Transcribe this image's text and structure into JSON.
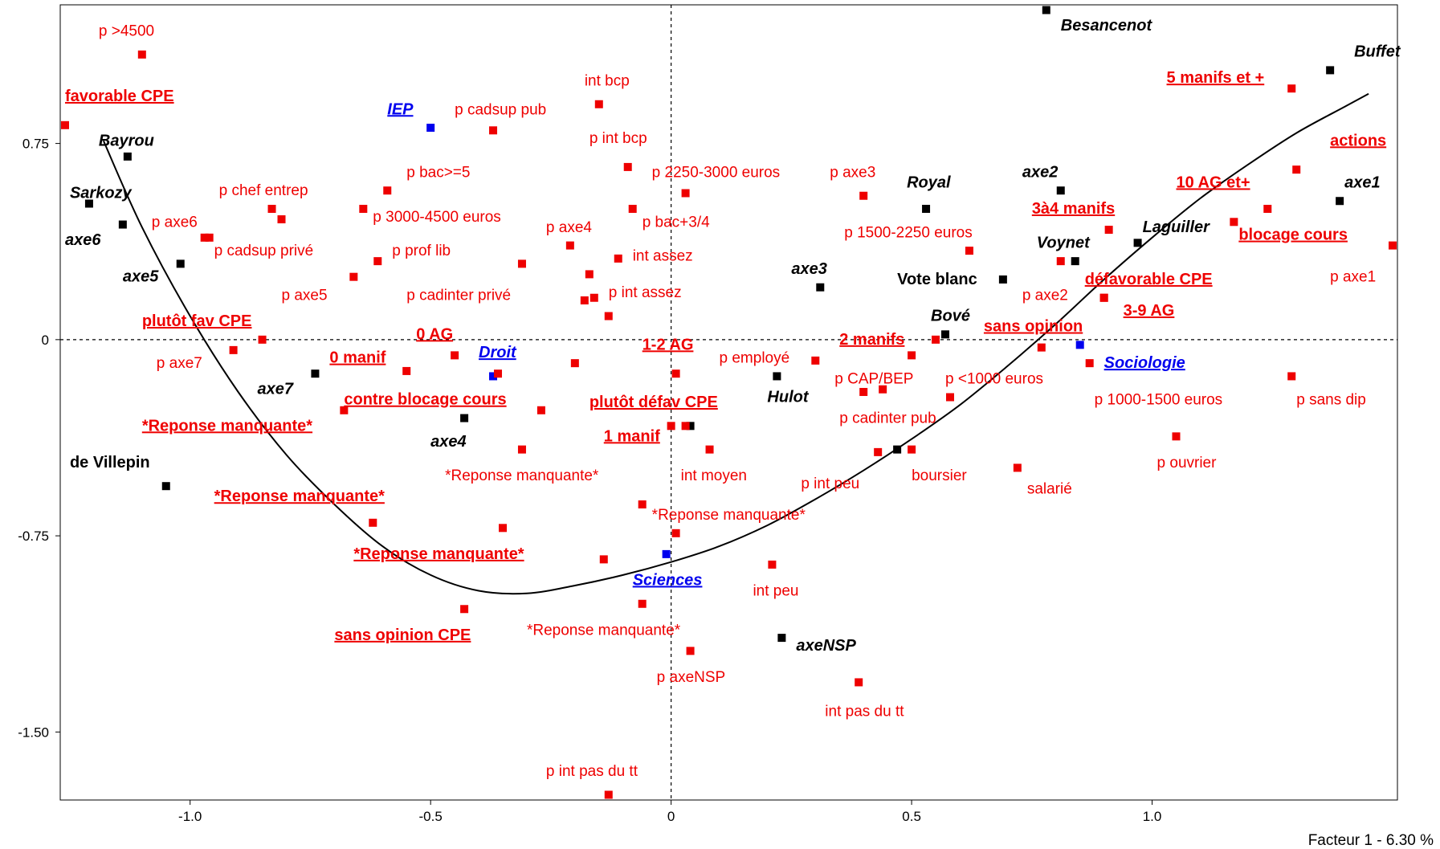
{
  "chart_data": {
    "type": "scatter",
    "subtitle": "Facteur 1  -  6.30 %",
    "xlim": [
      -1.27,
      1.51
    ],
    "ylim": [
      -1.76,
      1.28
    ],
    "grid": false,
    "zero_lines": "dashed",
    "x_ticks": [
      "-1.0",
      "-0.5",
      "0",
      "0.5",
      "1.0"
    ],
    "x_tick_values": [
      -1.0,
      -0.5,
      0,
      0.5,
      1.0
    ],
    "y_ticks": [
      "0.75",
      "0",
      "-0.75",
      "-1.50"
    ],
    "y_tick_values": [
      0.75,
      0,
      -0.75,
      -1.5
    ],
    "colors": {
      "red": "#ee0000",
      "black": "#000000",
      "blue": "#0000ee",
      "curve": "#000000"
    },
    "curve": [
      [
        -1.18,
        0.76
      ],
      [
        -1.1,
        0.43
      ],
      [
        -1.0,
        0.09
      ],
      [
        -0.9,
        -0.2
      ],
      [
        -0.8,
        -0.44
      ],
      [
        -0.7,
        -0.63
      ],
      [
        -0.6,
        -0.79
      ],
      [
        -0.5,
        -0.9
      ],
      [
        -0.4,
        -0.96
      ],
      [
        -0.3,
        -0.97
      ],
      [
        -0.2,
        -0.94
      ],
      [
        -0.1,
        -0.9
      ],
      [
        0.0,
        -0.85
      ],
      [
        0.1,
        -0.79
      ],
      [
        0.2,
        -0.71
      ],
      [
        0.3,
        -0.61
      ],
      [
        0.4,
        -0.5
      ],
      [
        0.5,
        -0.38
      ],
      [
        0.6,
        -0.25
      ],
      [
        0.7,
        -0.1
      ],
      [
        0.8,
        0.06
      ],
      [
        0.9,
        0.23
      ],
      [
        1.0,
        0.39
      ],
      [
        1.1,
        0.54
      ],
      [
        1.2,
        0.67
      ],
      [
        1.3,
        0.79
      ],
      [
        1.4,
        0.89
      ],
      [
        1.45,
        0.94
      ]
    ],
    "points": [
      {
        "x": 0.78,
        "y": 1.26,
        "color": "black",
        "label": "Besancenot",
        "style": "bold-italic",
        "lx": 0.81,
        "ly": 1.2
      },
      {
        "x": 1.37,
        "y": 1.03,
        "color": "black",
        "label": "Buffet",
        "style": "bold-italic",
        "lx": 1.42,
        "ly": 1.1
      },
      {
        "x": 1.29,
        "y": 0.96,
        "color": "red",
        "label": "5 manifs et +",
        "style": "bold-underline",
        "lx": 1.03,
        "ly": 1.0
      },
      {
        "x": 1.3,
        "y": 0.65,
        "color": "red",
        "label": "actions",
        "style": "bold-underline",
        "lx": 1.37,
        "ly": 0.76
      },
      {
        "x": 1.39,
        "y": 0.53,
        "color": "black",
        "label": "axe1",
        "style": "bold-italic",
        "lx": 1.4,
        "ly": 0.6
      },
      {
        "x": 1.24,
        "y": 0.5,
        "color": "red",
        "label": "10 AG et+",
        "style": "bold-underline",
        "lx": 1.05,
        "ly": 0.6
      },
      {
        "x": 1.17,
        "y": 0.45,
        "color": "red",
        "label": "blocage cours",
        "style": "bold-underline",
        "lx": 1.18,
        "ly": 0.4
      },
      {
        "x": 1.5,
        "y": 0.36,
        "color": "red",
        "label": "p axe1",
        "style": "normal",
        "lx": 1.37,
        "ly": 0.24
      },
      {
        "x": 0.81,
        "y": 0.57,
        "color": "black",
        "label": "axe2",
        "style": "bold-italic",
        "lx": 0.73,
        "ly": 0.64
      },
      {
        "x": 0.91,
        "y": 0.42,
        "color": "red",
        "label": "3à4 manifs",
        "style": "bold-underline",
        "lx": 0.75,
        "ly": 0.5
      },
      {
        "x": 0.97,
        "y": 0.37,
        "color": "black",
        "label": "Laguiller",
        "style": "bold-italic",
        "lx": 0.98,
        "ly": 0.43
      },
      {
        "x": 0.84,
        "y": 0.3,
        "color": "black",
        "label": "Voynet",
        "style": "bold-italic",
        "lx": 0.76,
        "ly": 0.37
      },
      {
        "x": 0.81,
        "y": 0.3,
        "color": "red",
        "label": "p axe2",
        "style": "normal",
        "lx": 0.73,
        "ly": 0.17
      },
      {
        "x": 0.9,
        "y": 0.16,
        "color": "red",
        "label": "défavorable CPE",
        "style": "bold-underline",
        "lx": 0.86,
        "ly": 0.23
      },
      {
        "x": 0.9,
        "y": 0.16,
        "color": "red",
        "label": "3-9 AG",
        "style": "bold-underline",
        "lx": 0.94,
        "ly": 0.11
      },
      {
        "x": 0.77,
        "y": -0.03,
        "color": "red",
        "label": "sans opinion",
        "style": "bold-underline",
        "lx": 0.65,
        "ly": 0.05
      },
      {
        "x": 0.85,
        "y": -0.02,
        "color": "blue",
        "label": "Sociologie",
        "style": "bold-italic-underline",
        "lx": 0.9,
        "ly": -0.09
      },
      {
        "x": 0.87,
        "y": -0.09,
        "color": "red",
        "label": "p 1000-1500 euros",
        "style": "normal",
        "lx": 0.88,
        "ly": -0.23
      },
      {
        "x": 1.29,
        "y": -0.14,
        "color": "red",
        "label": "p sans dip",
        "style": "normal",
        "lx": 1.3,
        "ly": -0.23
      },
      {
        "x": 1.05,
        "y": -0.37,
        "color": "red",
        "label": "p ouvrier",
        "style": "normal",
        "lx": 1.01,
        "ly": -0.47
      },
      {
        "x": 0.72,
        "y": -0.49,
        "color": "red",
        "label": "salarié",
        "style": "normal",
        "lx": 0.74,
        "ly": -0.57
      },
      {
        "x": 0.53,
        "y": 0.5,
        "color": "black",
        "label": "Royal",
        "style": "bold-italic",
        "lx": 0.49,
        "ly": 0.6
      },
      {
        "x": 0.4,
        "y": 0.55,
        "color": "red",
        "label": "p axe3",
        "style": "normal",
        "lx": 0.33,
        "ly": 0.64
      },
      {
        "x": 0.62,
        "y": 0.34,
        "color": "red",
        "label": "p 1500-2250 euros",
        "style": "normal",
        "lx": 0.36,
        "ly": 0.41
      },
      {
        "x": 0.69,
        "y": 0.23,
        "color": "black",
        "label": "Vote blanc",
        "style": "bold",
        "lx": 0.47,
        "ly": 0.23
      },
      {
        "x": 0.31,
        "y": 0.2,
        "color": "black",
        "label": "axe3",
        "style": "bold-italic",
        "lx": 0.25,
        "ly": 0.27
      },
      {
        "x": 0.57,
        "y": 0.02,
        "color": "black",
        "label": "Bové",
        "style": "bold-italic",
        "lx": 0.54,
        "ly": 0.09
      },
      {
        "x": 0.55,
        "y": 0.0,
        "color": "red",
        "label": "2 manifs",
        "style": "bold-underline",
        "lx": 0.35,
        "ly": 0.0
      },
      {
        "x": 0.5,
        "y": -0.06,
        "color": "red",
        "label": "p <1000 euros",
        "style": "normal",
        "lx": 0.57,
        "ly": -0.15
      },
      {
        "x": 0.3,
        "y": -0.08,
        "color": "red",
        "label": "p employé",
        "style": "normal",
        "lx": 0.1,
        "ly": -0.07
      },
      {
        "x": 0.4,
        "y": -0.2,
        "color": "red",
        "label": "p CAP/BEP",
        "style": "normal",
        "lx": 0.34,
        "ly": -0.15
      },
      {
        "x": 0.58,
        "y": -0.22,
        "color": "red",
        "label": "p cadinter pub",
        "style": "normal",
        "lx": 0.35,
        "ly": -0.3
      },
      {
        "x": 0.44,
        "y": -0.19,
        "color": "red",
        "label": "",
        "style": "normal",
        "lx": 0,
        "ly": 0
      },
      {
        "x": 0.22,
        "y": -0.14,
        "color": "black",
        "label": "Hulot",
        "style": "bold-italic",
        "lx": 0.2,
        "ly": -0.22
      },
      {
        "x": 0.5,
        "y": -0.42,
        "color": "red",
        "label": "boursier",
        "style": "normal",
        "lx": 0.5,
        "ly": -0.52
      },
      {
        "x": 0.47,
        "y": -0.42,
        "color": "black",
        "label": "",
        "style": "normal",
        "lx": 0,
        "ly": 0
      },
      {
        "x": 0.43,
        "y": -0.43,
        "color": "red",
        "label": "p int peu",
        "style": "normal",
        "lx": 0.27,
        "ly": -0.55
      },
      {
        "x": -0.15,
        "y": 0.9,
        "color": "red",
        "label": "int bcp",
        "style": "normal",
        "lx": -0.18,
        "ly": 0.99
      },
      {
        "x": -0.09,
        "y": 0.66,
        "color": "red",
        "label": "p int bcp",
        "style": "normal",
        "lx": -0.17,
        "ly": 0.77
      },
      {
        "x": 0.03,
        "y": 0.56,
        "color": "red",
        "label": "p 2250-3000 euros",
        "style": "normal",
        "lx": -0.04,
        "ly": 0.64
      },
      {
        "x": -0.08,
        "y": 0.5,
        "color": "red",
        "label": "p bac+3/4",
        "style": "normal",
        "lx": -0.06,
        "ly": 0.45
      },
      {
        "x": -0.21,
        "y": 0.36,
        "color": "red",
        "label": "p axe4",
        "style": "normal",
        "lx": -0.26,
        "ly": 0.43
      },
      {
        "x": -0.11,
        "y": 0.31,
        "color": "red",
        "label": "int assez",
        "style": "normal",
        "lx": -0.08,
        "ly": 0.32
      },
      {
        "x": -0.17,
        "y": 0.25,
        "color": "red",
        "label": "",
        "style": "normal",
        "lx": 0,
        "ly": 0
      },
      {
        "x": -0.16,
        "y": 0.16,
        "color": "red",
        "label": "p int assez",
        "style": "normal",
        "lx": -0.13,
        "ly": 0.18
      },
      {
        "x": -0.18,
        "y": 0.15,
        "color": "red",
        "label": "",
        "style": "normal",
        "lx": 0,
        "ly": 0
      },
      {
        "x": -0.13,
        "y": 0.09,
        "color": "red",
        "label": "",
        "style": "normal",
        "lx": 0,
        "ly": 0
      },
      {
        "x": 0.01,
        "y": -0.13,
        "color": "red",
        "label": "1-2 AG",
        "style": "bold-underline",
        "lx": -0.06,
        "ly": -0.02
      },
      {
        "x": -0.2,
        "y": -0.09,
        "color": "red",
        "label": "",
        "style": "normal",
        "lx": 0,
        "ly": 0
      },
      {
        "x": 0.04,
        "y": -0.33,
        "color": "black",
        "label": "",
        "style": "normal",
        "lx": 0,
        "ly": 0
      },
      {
        "x": 0.03,
        "y": -0.33,
        "color": "red",
        "label": "plutôt défav CPE",
        "style": "bold-underline",
        "lx": -0.17,
        "ly": -0.24
      },
      {
        "x": 0.0,
        "y": -0.33,
        "color": "red",
        "label": "1 manif",
        "style": "bold-underline",
        "lx": -0.14,
        "ly": -0.37
      },
      {
        "x": 0.08,
        "y": -0.42,
        "color": "red",
        "label": "int moyen",
        "style": "normal",
        "lx": 0.02,
        "ly": -0.52
      },
      {
        "x": -0.06,
        "y": -0.63,
        "color": "red",
        "label": "*Reponse manquante*",
        "style": "normal",
        "lx": -0.04,
        "ly": -0.67
      },
      {
        "x": 0.01,
        "y": -0.74,
        "color": "red",
        "label": "",
        "style": "normal",
        "lx": 0,
        "ly": 0
      },
      {
        "x": -0.01,
        "y": -0.82,
        "color": "blue",
        "label": "Sciences",
        "style": "bold-italic-underline",
        "lx": -0.08,
        "ly": -0.92
      },
      {
        "x": 0.21,
        "y": -0.86,
        "color": "red",
        "label": "int peu",
        "style": "normal",
        "lx": 0.17,
        "ly": -0.96
      },
      {
        "x": -0.14,
        "y": -0.84,
        "color": "red",
        "label": "",
        "style": "normal",
        "lx": 0,
        "ly": 0
      },
      {
        "x": -0.06,
        "y": -1.01,
        "color": "red",
        "label": "*Reponse manquante*",
        "style": "normal",
        "lx": -0.3,
        "ly": -1.11
      },
      {
        "x": 0.04,
        "y": -1.19,
        "color": "red",
        "label": "p axeNSP",
        "style": "normal",
        "lx": -0.03,
        "ly": -1.29
      },
      {
        "x": 0.23,
        "y": -1.14,
        "color": "black",
        "label": "axeNSP",
        "style": "bold-italic",
        "lx": 0.26,
        "ly": -1.17
      },
      {
        "x": 0.39,
        "y": -1.31,
        "color": "red",
        "label": "int pas du tt",
        "style": "normal",
        "lx": 0.32,
        "ly": -1.42
      },
      {
        "x": -0.13,
        "y": -1.74,
        "color": "red",
        "label": "p int pas du tt",
        "style": "normal",
        "lx": -0.26,
        "ly": -1.65
      },
      {
        "x": -1.26,
        "y": 0.82,
        "color": "red",
        "label": "favorable CPE",
        "style": "bold-underline",
        "lx": -1.26,
        "ly": 0.93
      },
      {
        "x": -1.1,
        "y": 1.09,
        "color": "red",
        "label": "p >4500",
        "style": "normal",
        "lx": -1.19,
        "ly": 1.18
      },
      {
        "x": -1.13,
        "y": 0.7,
        "color": "black",
        "label": "Bayrou",
        "style": "bold-italic",
        "lx": -1.19,
        "ly": 0.76
      },
      {
        "x": -1.21,
        "y": 0.52,
        "color": "black",
        "label": "Sarkozy",
        "style": "bold-italic",
        "lx": -1.25,
        "ly": 0.56
      },
      {
        "x": -1.14,
        "y": 0.44,
        "color": "black",
        "label": "axe6",
        "style": "bold-italic",
        "lx": -1.26,
        "ly": 0.38
      },
      {
        "x": -1.02,
        "y": 0.29,
        "color": "black",
        "label": "axe5",
        "style": "bold-italic",
        "lx": -1.14,
        "ly": 0.24
      },
      {
        "x": -0.5,
        "y": 0.81,
        "color": "blue",
        "label": "IEP",
        "style": "bold-italic-underline",
        "lx": -0.59,
        "ly": 0.88
      },
      {
        "x": -0.37,
        "y": 0.8,
        "color": "red",
        "label": "p cadsup pub",
        "style": "normal",
        "lx": -0.45,
        "ly": 0.88
      },
      {
        "x": -0.59,
        "y": 0.57,
        "color": "red",
        "label": "p bac>=5",
        "style": "normal",
        "lx": -0.55,
        "ly": 0.64
      },
      {
        "x": -0.83,
        "y": 0.5,
        "color": "red",
        "label": "p chef entrep",
        "style": "normal",
        "lx": -0.94,
        "ly": 0.57
      },
      {
        "x": -0.81,
        "y": 0.46,
        "color": "red",
        "label": "",
        "style": "normal",
        "lx": 0,
        "ly": 0
      },
      {
        "x": -0.64,
        "y": 0.5,
        "color": "red",
        "label": "p 3000-4500 euros",
        "style": "normal",
        "lx": -0.62,
        "ly": 0.47
      },
      {
        "x": -0.96,
        "y": 0.39,
        "color": "red",
        "label": "p axe6",
        "style": "normal",
        "lx": -1.08,
        "ly": 0.45
      },
      {
        "x": -0.97,
        "y": 0.39,
        "color": "red",
        "label": "p cadsup privé",
        "style": "normal",
        "lx": -0.95,
        "ly": 0.34
      },
      {
        "x": -0.61,
        "y": 0.3,
        "color": "red",
        "label": "p prof lib",
        "style": "normal",
        "lx": -0.58,
        "ly": 0.34
      },
      {
        "x": -0.66,
        "y": 0.24,
        "color": "red",
        "label": "p axe5",
        "style": "normal",
        "lx": -0.81,
        "ly": 0.17
      },
      {
        "x": -0.31,
        "y": 0.29,
        "color": "red",
        "label": "p cadinter privé",
        "style": "normal",
        "lx": -0.55,
        "ly": 0.17
      },
      {
        "x": -0.85,
        "y": 0.0,
        "color": "red",
        "label": "plutôt fav CPE",
        "style": "bold-underline",
        "lx": -1.1,
        "ly": 0.07
      },
      {
        "x": -0.91,
        "y": -0.04,
        "color": "red",
        "label": "p axe7",
        "style": "normal",
        "lx": -1.07,
        "ly": -0.09
      },
      {
        "x": -0.74,
        "y": -0.13,
        "color": "black",
        "label": "axe7",
        "style": "bold-italic",
        "lx": -0.86,
        "ly": -0.19
      },
      {
        "x": -0.55,
        "y": -0.12,
        "color": "red",
        "label": "0 manif",
        "style": "bold-underline",
        "lx": -0.71,
        "ly": -0.07
      },
      {
        "x": -0.45,
        "y": -0.06,
        "color": "red",
        "label": "0 AG",
        "style": "bold-underline",
        "lx": -0.53,
        "ly": 0.02
      },
      {
        "x": -0.37,
        "y": -0.14,
        "color": "blue",
        "label": "Droit",
        "style": "bold-italic-underline",
        "lx": -0.4,
        "ly": -0.05
      },
      {
        "x": -0.36,
        "y": -0.13,
        "color": "red",
        "label": "",
        "style": "normal",
        "lx": 0,
        "ly": 0
      },
      {
        "x": -0.27,
        "y": -0.27,
        "color": "red",
        "label": "contre blocage cours",
        "style": "bold-underline",
        "lx": -0.68,
        "ly": -0.23
      },
      {
        "x": -0.68,
        "y": -0.27,
        "color": "red",
        "label": "*Reponse manquante*",
        "style": "bold-underline",
        "lx": -1.1,
        "ly": -0.33
      },
      {
        "x": -0.43,
        "y": -0.3,
        "color": "black",
        "label": "axe4",
        "style": "bold-italic",
        "lx": -0.5,
        "ly": -0.39
      },
      {
        "x": -0.31,
        "y": -0.42,
        "color": "red",
        "label": "*Reponse manquante*",
        "style": "normal",
        "lx": -0.47,
        "ly": -0.52
      },
      {
        "x": -1.05,
        "y": -0.56,
        "color": "black",
        "label": "de Villepin",
        "style": "bold",
        "lx": -1.25,
        "ly": -0.47
      },
      {
        "x": -0.62,
        "y": -0.7,
        "color": "red",
        "label": "*Reponse manquante*",
        "style": "bold-underline",
        "lx": -0.95,
        "ly": -0.6
      },
      {
        "x": -0.35,
        "y": -0.72,
        "color": "red",
        "label": "*Reponse manquante*",
        "style": "bold-underline",
        "lx": -0.66,
        "ly": -0.82
      },
      {
        "x": -0.43,
        "y": -1.03,
        "color": "red",
        "label": "sans opinion CPE",
        "style": "bold-underline",
        "lx": -0.7,
        "ly": -1.13
      }
    ]
  }
}
